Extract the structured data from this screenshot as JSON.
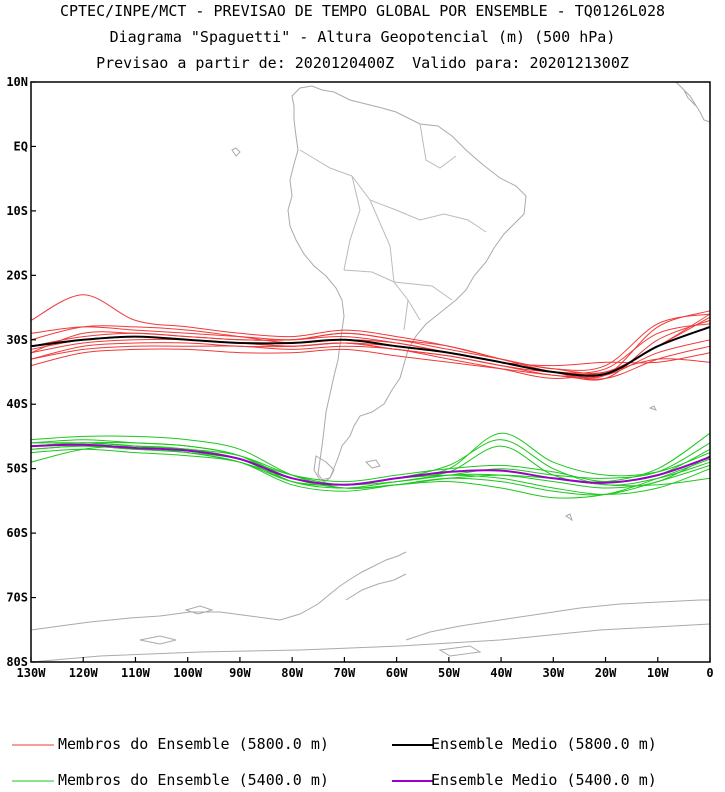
{
  "title": {
    "line1": "CPTEC/INPE/MCT - PREVISAO DE TEMPO GLOBAL POR ENSEMBLE - TQ0126L028",
    "line2": "Diagrama \"Spaguetti\" - Altura Geopotencial (m) (500 hPa)",
    "line3": "Previsao a partir de: 2020120400Z  Valido para: 2020121300Z"
  },
  "colors": {
    "red": "#f03a3a",
    "green": "#1ec81e",
    "black": "#000000",
    "purple": "#9a00c8",
    "coast": "#aaaaaa"
  },
  "chart_data": {
    "type": "line",
    "xlim": [
      -130,
      0
    ],
    "ylim": [
      -80,
      10
    ],
    "x_ticks": [
      -130,
      -120,
      -110,
      -100,
      -90,
      -80,
      -70,
      -60,
      -50,
      -40,
      -30,
      -20,
      -10,
      0
    ],
    "x_tick_labels": [
      "130W",
      "120W",
      "110W",
      "100W",
      "90W",
      "80W",
      "70W",
      "60W",
      "50W",
      "40W",
      "30W",
      "20W",
      "10W",
      "0"
    ],
    "y_ticks": [
      10,
      0,
      -10,
      -20,
      -30,
      -40,
      -50,
      -60,
      -70,
      -80
    ],
    "y_tick_labels": [
      "10N",
      "EQ",
      "10S",
      "20S",
      "30S",
      "40S",
      "50S",
      "60S",
      "70S",
      "80S"
    ],
    "x": [
      -130,
      -120,
      -110,
      -100,
      -90,
      -80,
      -70,
      -60,
      -50,
      -40,
      -30,
      -20,
      -10,
      0
    ],
    "series": [
      {
        "name": "Membros do Ensemble (5800.0 m)",
        "group": "red",
        "width": 1,
        "values": [
          -31,
          -29.5,
          -29,
          -29.5,
          -30,
          -30,
          -29,
          -30,
          -31,
          -33,
          -35,
          -36,
          -30,
          -27
        ]
      },
      {
        "name": "Membros do Ensemble (5800.0 m)",
        "group": "red",
        "width": 1,
        "values": [
          -33,
          -31,
          -30.5,
          -30.5,
          -31,
          -31,
          -30.5,
          -31.5,
          -32.5,
          -34,
          -35.5,
          -35.5,
          -32,
          -30
        ]
      },
      {
        "name": "Membros do Ensemble (5800.0 m)",
        "group": "red",
        "width": 1,
        "values": [
          -27,
          -23,
          -27,
          -28,
          -29,
          -29.5,
          -28.5,
          -29.5,
          -31,
          -33,
          -34.5,
          -35,
          -31,
          -26
        ]
      },
      {
        "name": "Membros do Ensemble (5800.0 m)",
        "group": "red",
        "width": 1,
        "values": [
          -30,
          -28,
          -28,
          -28.5,
          -29.5,
          -30.5,
          -30,
          -30.5,
          -32,
          -33.5,
          -35,
          -35.5,
          -28,
          -25.5
        ]
      },
      {
        "name": "Membros do Ensemble (5800.0 m)",
        "group": "red",
        "width": 1,
        "values": [
          -32,
          -30.5,
          -30,
          -30,
          -30.5,
          -31,
          -30.5,
          -31,
          -32,
          -33.5,
          -35,
          -35,
          -31,
          -26.5
        ]
      },
      {
        "name": "Membros do Ensemble (5800.0 m)",
        "group": "red",
        "width": 1,
        "values": [
          -34,
          -32,
          -31.5,
          -31.5,
          -32,
          -32,
          -31.5,
          -32.5,
          -33.5,
          -34.5,
          -35.5,
          -36,
          -33,
          -31
        ]
      },
      {
        "name": "Membros do Ensemble (5800.0 m)",
        "group": "red",
        "width": 1,
        "values": [
          -29,
          -28,
          -28.5,
          -29,
          -29.5,
          -30,
          -29,
          -30,
          -31.5,
          -33,
          -34.5,
          -34,
          -27.5,
          -26
        ]
      },
      {
        "name": "Membros do Ensemble (5800.0 m)",
        "group": "red",
        "width": 1,
        "values": [
          -31.5,
          -30,
          -29.5,
          -30,
          -30.5,
          -31,
          -30.5,
          -31.5,
          -32.5,
          -34,
          -35,
          -34.5,
          -29,
          -27.5
        ]
      },
      {
        "name": "Membros do Ensemble (5800.0 m)",
        "group": "red",
        "width": 1,
        "values": [
          -33,
          -31.5,
          -31,
          -31,
          -31,
          -31.5,
          -31,
          -31.5,
          -33,
          -34.5,
          -36,
          -35,
          -33,
          -33.5
        ]
      },
      {
        "name": "Membros do Ensemble (5800.0 m)",
        "group": "red",
        "width": 1,
        "values": [
          -32,
          -29,
          -29,
          -29.5,
          -30,
          -30,
          -29.5,
          -30.5,
          -32,
          -33.5,
          -34,
          -33.5,
          -33.5,
          -32
        ]
      },
      {
        "name": "Ensemble Medio (5800.0 m)",
        "group": "black",
        "width": 2,
        "values": [
          -31,
          -30,
          -29.5,
          -30,
          -30.5,
          -30.5,
          -30,
          -31,
          -32,
          -33.5,
          -35,
          -35.3,
          -31,
          -28
        ]
      },
      {
        "name": "Membros do Ensemble (5400.0 m)",
        "group": "green",
        "width": 1,
        "values": [
          -46.5,
          -46,
          -46.5,
          -47,
          -48,
          -51,
          -52.5,
          -51.5,
          -50,
          -44.5,
          -49,
          -51,
          -50.5,
          -47.5
        ]
      },
      {
        "name": "Membros do Ensemble (5400.0 m)",
        "group": "green",
        "width": 1,
        "values": [
          -47,
          -46.5,
          -47,
          -47.5,
          -49,
          -51.5,
          -52.5,
          -51.5,
          -49.5,
          -45.5,
          -50,
          -52.5,
          -51.5,
          -49
        ]
      },
      {
        "name": "Membros do Ensemble (5400.0 m)",
        "group": "green",
        "width": 1,
        "values": [
          -46,
          -45.5,
          -46,
          -46.5,
          -48,
          -52,
          -53,
          -52,
          -51,
          -51,
          -52,
          -53,
          -52,
          -48
        ]
      },
      {
        "name": "Membros do Ensemble (5400.0 m)",
        "group": "green",
        "width": 1,
        "values": [
          -47.5,
          -47,
          -47.5,
          -48,
          -49,
          -52,
          -52.5,
          -51.5,
          -51,
          -51.5,
          -53,
          -54,
          -53,
          -50
        ]
      },
      {
        "name": "Membros do Ensemble (5400.0 m)",
        "group": "green",
        "width": 1,
        "values": [
          -45.5,
          -45,
          -45,
          -45.5,
          -47,
          -51,
          -53,
          -52.5,
          -51.5,
          -51,
          -51.5,
          -52,
          -50,
          -44.5
        ]
      },
      {
        "name": "Membros do Ensemble (5400.0 m)",
        "group": "green",
        "width": 1,
        "values": [
          -46.5,
          -46,
          -46.5,
          -47.5,
          -49,
          -52.5,
          -53.5,
          -52.5,
          -51.5,
          -52,
          -53.5,
          -54,
          -52,
          -49.5
        ]
      },
      {
        "name": "Membros do Ensemble (5400.0 m)",
        "group": "green",
        "width": 1,
        "values": [
          -49,
          -47,
          -46.5,
          -47,
          -48.5,
          -51.5,
          -52.5,
          -52,
          -51,
          -50,
          -51,
          -51.5,
          -50.5,
          -46
        ]
      },
      {
        "name": "Membros do Ensemble (5400.0 m)",
        "group": "green",
        "width": 1,
        "values": [
          -46,
          -46,
          -46.5,
          -47,
          -48.5,
          -52,
          -52.5,
          -51.5,
          -50.5,
          -46.5,
          -51,
          -52.5,
          -52.5,
          -51.5
        ]
      },
      {
        "name": "Membros do Ensemble (5400.0 m)",
        "group": "green",
        "width": 1,
        "values": [
          -47,
          -46.5,
          -47,
          -47.5,
          -48.5,
          -51,
          -52,
          -51,
          -50,
          -49.5,
          -50.5,
          -52,
          -51,
          -47
        ]
      },
      {
        "name": "Membros do Ensemble (5400.0 m)",
        "group": "green",
        "width": 1,
        "values": [
          -46.5,
          -46,
          -46,
          -46.5,
          -48,
          -51.5,
          -53,
          -52.5,
          -52,
          -53,
          -54.5,
          -54,
          -51.5,
          -48.5
        ]
      },
      {
        "name": "Ensemble Medio (5400.0 m)",
        "group": "purple",
        "width": 2,
        "values": [
          -46.5,
          -46.3,
          -46.8,
          -47.2,
          -48.5,
          -51.5,
          -52.5,
          -51.5,
          -50.5,
          -50.3,
          -51.5,
          -52.2,
          -51,
          -48.2
        ]
      }
    ],
    "legend": [
      {
        "label": "Membros do Ensemble (5800.0 m)",
        "group": "red"
      },
      {
        "label": "Ensemble Medio (5800.0 m)",
        "group": "black"
      },
      {
        "label": "Membros do Ensemble (5400.0 m)",
        "group": "green"
      },
      {
        "label": "Ensemble Medio (5400.0 m)",
        "group": "purple"
      }
    ]
  }
}
